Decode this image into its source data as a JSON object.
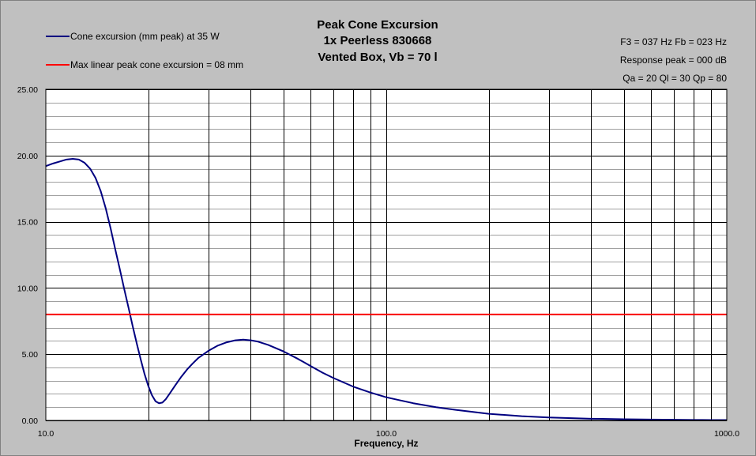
{
  "chart_data": {
    "type": "line",
    "title_lines": [
      "Peak Cone Excursion",
      "1x Peerless 830668",
      "Vented Box, Vb = 70 l"
    ],
    "info_lines": [
      "F3 = 037 Hz  Fb = 023 Hz",
      "Response peak = 000 dB",
      "Qa = 20  Ql = 30  Qp = 80"
    ],
    "xlabel": "Frequency, Hz",
    "ylabel": "",
    "x_scale": "log",
    "xlim": [
      10,
      1000
    ],
    "ylim": [
      0,
      25
    ],
    "x_tick_labels": [
      "10.0",
      "100.0",
      "1000.0"
    ],
    "y_tick_labels": [
      "0.00",
      "5.00",
      "10.00",
      "15.00",
      "20.00",
      "25.00"
    ],
    "grid": true,
    "legend_position": "top-left",
    "series": [
      {
        "name": "Cone excursion (mm peak) at 35 W",
        "color": "#000080",
        "x": [
          10,
          10.5,
          11,
          11.5,
          12,
          12.5,
          13,
          13.5,
          14,
          14.5,
          15,
          15.5,
          16,
          16.5,
          17,
          17.5,
          18,
          18.5,
          19,
          19.5,
          20,
          20.5,
          21,
          21.5,
          22,
          22.5,
          23,
          24,
          25,
          26,
          27,
          28,
          30,
          32,
          34,
          36,
          38,
          40,
          42,
          45,
          50,
          55,
          60,
          65,
          70,
          80,
          90,
          100,
          120,
          140,
          160,
          200,
          250,
          300,
          400,
          500,
          600,
          700,
          800,
          900,
          1000
        ],
        "y": [
          19.2,
          19.4,
          19.55,
          19.7,
          19.75,
          19.7,
          19.45,
          19.0,
          18.3,
          17.3,
          16.0,
          14.5,
          12.9,
          11.4,
          9.9,
          8.5,
          7.1,
          5.8,
          4.6,
          3.5,
          2.6,
          1.9,
          1.45,
          1.3,
          1.35,
          1.6,
          1.95,
          2.65,
          3.3,
          3.85,
          4.3,
          4.7,
          5.25,
          5.65,
          5.9,
          6.05,
          6.1,
          6.05,
          5.95,
          5.7,
          5.2,
          4.65,
          4.1,
          3.6,
          3.2,
          2.55,
          2.1,
          1.75,
          1.3,
          1.0,
          0.8,
          0.5,
          0.32,
          0.22,
          0.13,
          0.09,
          0.07,
          0.05,
          0.04,
          0.03,
          0.03
        ]
      },
      {
        "name": "Max linear peak cone excursion = 08 mm",
        "color": "#ff0000",
        "x": [
          10,
          1000
        ],
        "y": [
          8,
          8
        ]
      }
    ]
  }
}
